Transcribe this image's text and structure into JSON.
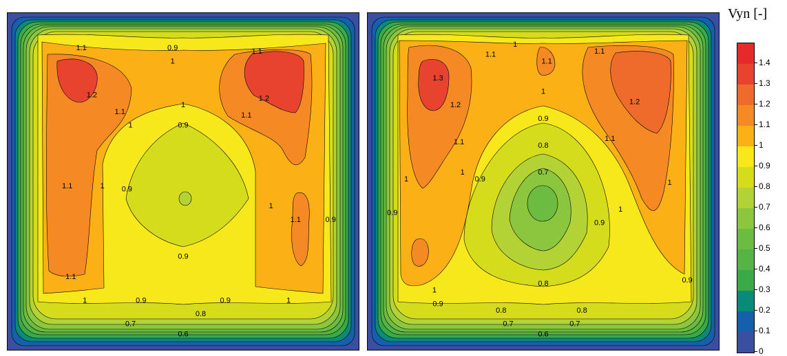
{
  "colorbar": {
    "title": "Vyn [-]",
    "levels": [
      0,
      0.1,
      0.2,
      0.3,
      0.4,
      0.5,
      0.6,
      0.7,
      0.8,
      0.9,
      1,
      1.1,
      1.2,
      1.3,
      1.4
    ],
    "labels": [
      "0",
      "0.1",
      "0.2",
      "0.3",
      "0.4",
      "0.5",
      "0.6",
      "0.7",
      "0.8",
      "0.9",
      "1",
      "1.1",
      "1.2",
      "1.3",
      "1.4"
    ],
    "colors": [
      "#3b4fa0",
      "#1560ad",
      "#0a8a78",
      "#3aaa48",
      "#55b444",
      "#6cbc42",
      "#8cc63f",
      "#b3d235",
      "#d4dc1c",
      "#f7e81c",
      "#fbb116",
      "#f58a25",
      "#ee6b2b",
      "#e8432e",
      "#e62a2c"
    ],
    "max": 1.5
  },
  "chart_data": [
    {
      "type": "heatmap",
      "variable": "Vyn [-]",
      "contour_labels": [
        {
          "text": "0.6",
          "x": 0.5,
          "y": 0.96
        },
        {
          "text": "0.7",
          "x": 0.35,
          "y": 0.93
        },
        {
          "text": "0.8",
          "x": 0.55,
          "y": 0.9
        },
        {
          "text": "0.9",
          "x": 0.38,
          "y": 0.86
        },
        {
          "text": "0.9",
          "x": 0.62,
          "y": 0.86
        },
        {
          "text": "1",
          "x": 0.22,
          "y": 0.86
        },
        {
          "text": "1",
          "x": 0.8,
          "y": 0.86
        },
        {
          "text": "1.1",
          "x": 0.18,
          "y": 0.79
        },
        {
          "text": "0.9",
          "x": 0.5,
          "y": 0.73
        },
        {
          "text": "1.1",
          "x": 0.17,
          "y": 0.52
        },
        {
          "text": "1",
          "x": 0.27,
          "y": 0.52
        },
        {
          "text": "0.9",
          "x": 0.34,
          "y": 0.53
        },
        {
          "text": "1",
          "x": 0.75,
          "y": 0.58
        },
        {
          "text": "1.1",
          "x": 0.82,
          "y": 0.62
        },
        {
          "text": "0.9",
          "x": 0.92,
          "y": 0.62
        },
        {
          "text": "0.9",
          "x": 0.5,
          "y": 0.34
        },
        {
          "text": "1",
          "x": 0.5,
          "y": 0.28
        },
        {
          "text": "1",
          "x": 0.35,
          "y": 0.34
        },
        {
          "text": "1.1",
          "x": 0.32,
          "y": 0.3
        },
        {
          "text": "1.1",
          "x": 0.68,
          "y": 0.31
        },
        {
          "text": "1.2",
          "x": 0.24,
          "y": 0.25
        },
        {
          "text": "1.2",
          "x": 0.73,
          "y": 0.26
        },
        {
          "text": "1.1",
          "x": 0.21,
          "y": 0.11
        },
        {
          "text": "0.9",
          "x": 0.47,
          "y": 0.11
        },
        {
          "text": "1",
          "x": 0.47,
          "y": 0.15
        },
        {
          "text": "1.1",
          "x": 0.71,
          "y": 0.12
        }
      ]
    },
    {
      "type": "heatmap",
      "variable": "Vyn [-]",
      "contour_labels": [
        {
          "text": "0.6",
          "x": 0.5,
          "y": 0.96
        },
        {
          "text": "0.7",
          "x": 0.4,
          "y": 0.93
        },
        {
          "text": "0.7",
          "x": 0.59,
          "y": 0.93
        },
        {
          "text": "0.8",
          "x": 0.38,
          "y": 0.89
        },
        {
          "text": "0.8",
          "x": 0.61,
          "y": 0.89
        },
        {
          "text": "0.9",
          "x": 0.2,
          "y": 0.87
        },
        {
          "text": "1",
          "x": 0.19,
          "y": 0.83
        },
        {
          "text": "0.8",
          "x": 0.5,
          "y": 0.81
        },
        {
          "text": "0.9",
          "x": 0.91,
          "y": 0.8
        },
        {
          "text": "0.9",
          "x": 0.07,
          "y": 0.6
        },
        {
          "text": "1",
          "x": 0.11,
          "y": 0.5
        },
        {
          "text": "1",
          "x": 0.27,
          "y": 0.48
        },
        {
          "text": "0.9",
          "x": 0.32,
          "y": 0.5
        },
        {
          "text": "0.7",
          "x": 0.5,
          "y": 0.48
        },
        {
          "text": "0.8",
          "x": 0.5,
          "y": 0.4
        },
        {
          "text": "0.9",
          "x": 0.66,
          "y": 0.63
        },
        {
          "text": "1",
          "x": 0.72,
          "y": 0.59
        },
        {
          "text": "1",
          "x": 0.86,
          "y": 0.51
        },
        {
          "text": "1.1",
          "x": 0.26,
          "y": 0.39
        },
        {
          "text": "1.1",
          "x": 0.69,
          "y": 0.38
        },
        {
          "text": "0.9",
          "x": 0.5,
          "y": 0.32
        },
        {
          "text": "1",
          "x": 0.5,
          "y": 0.24
        },
        {
          "text": "1.2",
          "x": 0.25,
          "y": 0.28
        },
        {
          "text": "1.3",
          "x": 0.2,
          "y": 0.2
        },
        {
          "text": "1.2",
          "x": 0.76,
          "y": 0.27
        },
        {
          "text": "1.1",
          "x": 0.35,
          "y": 0.13
        },
        {
          "text": "1",
          "x": 0.42,
          "y": 0.1
        },
        {
          "text": "1.1",
          "x": 0.51,
          "y": 0.15
        },
        {
          "text": "1.1",
          "x": 0.66,
          "y": 0.12
        }
      ]
    }
  ]
}
